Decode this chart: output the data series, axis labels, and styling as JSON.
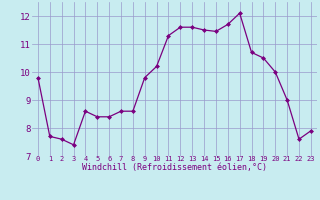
{
  "x": [
    0,
    1,
    2,
    3,
    4,
    5,
    6,
    7,
    8,
    9,
    10,
    11,
    12,
    13,
    14,
    15,
    16,
    17,
    18,
    19,
    20,
    21,
    22,
    23
  ],
  "y": [
    9.8,
    7.7,
    7.6,
    7.4,
    8.6,
    8.4,
    8.4,
    8.6,
    8.6,
    9.8,
    10.2,
    11.3,
    11.6,
    11.6,
    11.5,
    11.45,
    11.7,
    12.1,
    10.7,
    10.5,
    10.0,
    9.0,
    7.6,
    7.9
  ],
  "line_color": "#7B0080",
  "marker_color": "#7B0080",
  "bg_color": "#c8ecf0",
  "grid_color": "#9999cc",
  "tick_label_color": "#7B0080",
  "xlabel": "Windchill (Refroidissement éolien,°C)",
  "xlabel_color": "#7B0080",
  "ylim": [
    7.0,
    12.5
  ],
  "yticks": [
    7,
    8,
    9,
    10,
    11,
    12
  ],
  "xtick_labels": [
    "0",
    "1",
    "2",
    "3",
    "4",
    "5",
    "6",
    "7",
    "8",
    "9",
    "10",
    "11",
    "12",
    "13",
    "14",
    "15",
    "16",
    "17",
    "18",
    "19",
    "20",
    "21",
    "22",
    "23"
  ]
}
